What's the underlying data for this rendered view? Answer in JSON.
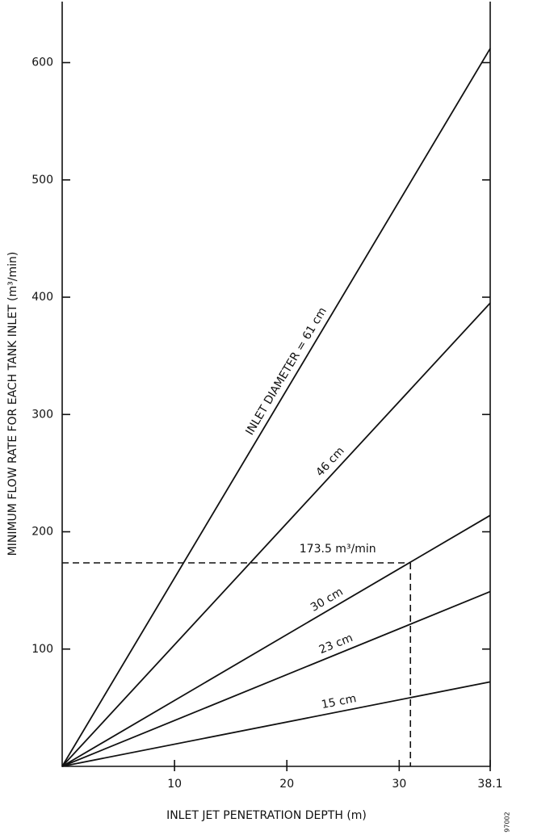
{
  "chart_data": {
    "type": "line",
    "x_label": "INLET JET PENETRATION DEPTH (m)",
    "y_label": "MINIMUM FLOW RATE FOR EACH TANK INLET (m³/min)",
    "x": [
      0,
      38.1
    ],
    "series": [
      {
        "name": "INLET DIAMETER = 61 cm",
        "color": "#111111",
        "values": [
          0,
          612
        ]
      },
      {
        "name": "46 cm",
        "color": "#111111",
        "values": [
          0,
          395
        ]
      },
      {
        "name": "30 cm",
        "color": "#111111",
        "values": [
          0,
          214
        ]
      },
      {
        "name": "23 cm",
        "color": "#111111",
        "values": [
          0,
          149
        ]
      },
      {
        "name": "15 cm",
        "color": "#111111",
        "values": [
          0,
          72
        ]
      }
    ],
    "annotation": {
      "text": "173.5 m³/min",
      "x": 31,
      "y": 173.5
    },
    "xlim": [
      0,
      38.1
    ],
    "xticks": [
      10,
      20,
      30,
      38.1
    ],
    "ylim": [
      0,
      652
    ],
    "yticks": [
      100,
      200,
      300,
      400,
      500,
      600
    ],
    "figure_id": "97002"
  }
}
